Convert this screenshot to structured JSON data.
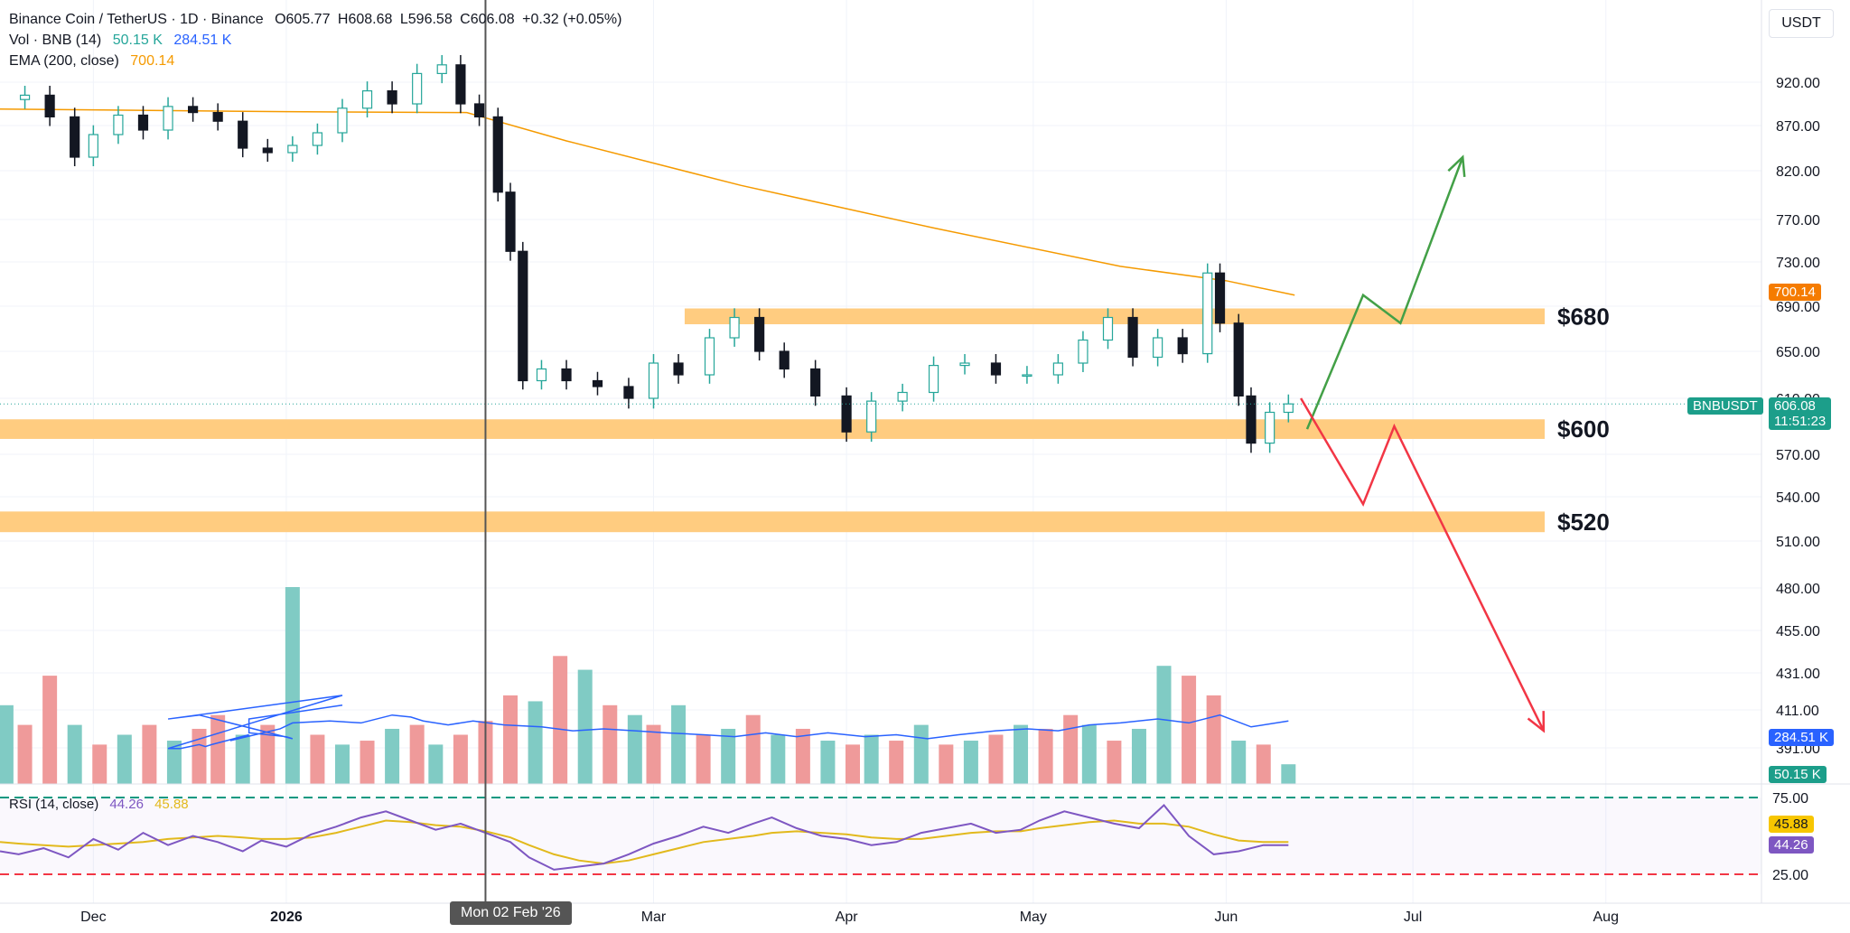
{
  "header": {
    "title": "Binance Coin / TetherUS · 1D · Binance",
    "ohlc": {
      "open": "O605.77",
      "high": "H608.68",
      "low": "L596.58",
      "close": "C606.08",
      "change": "+0.32 (+0.05%)"
    },
    "vol_label": "Vol · BNB (14)",
    "vol_value": "50.15 K",
    "vol_ma": "284.51 K",
    "ema_label": "EMA (200, close)",
    "ema_value": "700.14"
  },
  "unit": "USDT",
  "colors": {
    "up": "#26a69a",
    "down": "#131722",
    "ema": "#f59a00",
    "zone": "#ffcc80",
    "vol_up": "#80cbc4",
    "vol_down": "#ef9a9a",
    "vol_ma": "#2962ff",
    "rsi": "#7e57c2",
    "rsi_ma": "#e2b91c",
    "bull_arrow": "#43a047",
    "bear_arrow": "#f23645"
  },
  "chart_data": {
    "type": "candlestick",
    "symbol": "BNBUSDT",
    "y_ticks": [
      920,
      870,
      820,
      770,
      730,
      690,
      650,
      610,
      570,
      540,
      510,
      480,
      455,
      431,
      411,
      391
    ],
    "x_ticks": [
      "Dec",
      "2026",
      "Mar",
      "Apr",
      "May",
      "Jun",
      "Jul",
      "Aug"
    ],
    "x_ticks_dates": [
      "2025-12-01",
      "2026-01-01",
      "2026-03-01",
      "2026-04-01",
      "2026-05-01",
      "2026-06-01",
      "2026-07-01",
      "2026-08-01"
    ],
    "x_range": [
      "2025-11-16",
      "2026-08-26"
    ],
    "y_range": [
      380,
      960
    ],
    "crosshair": {
      "date": "2026-02-02",
      "label": "Mon 02 Feb '26"
    },
    "close_series": [
      [
        "2025-11-17",
        900
      ],
      [
        "2025-11-20",
        905
      ],
      [
        "2025-11-24",
        880
      ],
      [
        "2025-11-28",
        835
      ],
      [
        "2025-12-01",
        860
      ],
      [
        "2025-12-05",
        882
      ],
      [
        "2025-12-09",
        865
      ],
      [
        "2025-12-13",
        892
      ],
      [
        "2025-12-17",
        885
      ],
      [
        "2025-12-21",
        875
      ],
      [
        "2025-12-25",
        845
      ],
      [
        "2025-12-29",
        840
      ],
      [
        "2026-01-02",
        848
      ],
      [
        "2026-01-06",
        862
      ],
      [
        "2026-01-10",
        890
      ],
      [
        "2026-01-14",
        910
      ],
      [
        "2026-01-18",
        895
      ],
      [
        "2026-01-22",
        930
      ],
      [
        "2026-01-26",
        940
      ],
      [
        "2026-01-29",
        895
      ],
      [
        "2026-02-01",
        880
      ],
      [
        "2026-02-04",
        798
      ],
      [
        "2026-02-06",
        740
      ],
      [
        "2026-02-08",
        625
      ],
      [
        "2026-02-11",
        635
      ],
      [
        "2026-02-15",
        625
      ],
      [
        "2026-02-20",
        620
      ],
      [
        "2026-02-25",
        610
      ],
      [
        "2026-03-01",
        640
      ],
      [
        "2026-03-05",
        630
      ],
      [
        "2026-03-10",
        662
      ],
      [
        "2026-03-14",
        680
      ],
      [
        "2026-03-18",
        650
      ],
      [
        "2026-03-22",
        635
      ],
      [
        "2026-03-27",
        612
      ],
      [
        "2026-04-01",
        586
      ],
      [
        "2026-04-05",
        608
      ],
      [
        "2026-04-10",
        615
      ],
      [
        "2026-04-15",
        638
      ],
      [
        "2026-04-20",
        640
      ],
      [
        "2026-04-25",
        630
      ],
      [
        "2026-04-30",
        630
      ],
      [
        "2026-05-05",
        640
      ],
      [
        "2026-05-09",
        660
      ],
      [
        "2026-05-13",
        680
      ],
      [
        "2026-05-17",
        645
      ],
      [
        "2026-05-21",
        662
      ],
      [
        "2026-05-25",
        648
      ],
      [
        "2026-05-29",
        720
      ],
      [
        "2026-05-31",
        675
      ],
      [
        "2026-06-03",
        612
      ],
      [
        "2026-06-05",
        578
      ],
      [
        "2026-06-08",
        600
      ],
      [
        "2026-06-11",
        606
      ]
    ],
    "ema_series": [
      [
        "2025-11-16",
        889
      ],
      [
        "2026-01-01",
        886
      ],
      [
        "2026-01-30",
        885
      ],
      [
        "2026-02-15",
        853
      ],
      [
        "2026-03-15",
        805
      ],
      [
        "2026-04-15",
        762
      ],
      [
        "2026-05-15",
        726
      ],
      [
        "2026-06-01",
        713
      ],
      [
        "2026-06-12",
        700
      ]
    ],
    "ema_last": 700.14,
    "zones": [
      {
        "label": "$680",
        "low": 674,
        "high": 688,
        "from": "2026-03-06"
      },
      {
        "label": "$600",
        "low": 581,
        "high": 595,
        "from": "2025-11-16"
      },
      {
        "label": "$520",
        "low": 516,
        "high": 530,
        "from": "2025-11-16"
      }
    ],
    "price_tags": [
      {
        "name": "BNBUSDT",
        "value": "606.08",
        "time": "11:51:23"
      },
      {
        "name": "EMA",
        "value": "700.14"
      },
      {
        "name": "Vol MA",
        "value": "284.51 K"
      },
      {
        "name": "Vol",
        "value": "50.15 K"
      }
    ],
    "scenarios": {
      "bullish": [
        [
          "2026-06-14",
          588
        ],
        [
          "2026-06-23",
          700
        ],
        [
          "2026-06-29",
          675
        ],
        [
          "2026-07-09",
          835
        ]
      ],
      "bearish": [
        [
          "2026-06-13",
          610
        ],
        [
          "2026-06-23",
          535
        ],
        [
          "2026-06-28",
          590
        ],
        [
          "2026-07-22",
          400
        ]
      ]
    },
    "volume_series": [
      [
        0.4,
        1
      ],
      [
        0.3,
        0
      ],
      [
        0.55,
        0
      ],
      [
        0.3,
        1
      ],
      [
        0.2,
        0
      ],
      [
        0.25,
        1
      ],
      [
        0.3,
        0
      ],
      [
        0.22,
        1
      ],
      [
        0.28,
        0
      ],
      [
        0.35,
        0
      ],
      [
        0.25,
        1
      ],
      [
        0.3,
        0
      ],
      [
        1.0,
        1
      ],
      [
        0.25,
        0
      ],
      [
        0.2,
        1
      ],
      [
        0.22,
        0
      ],
      [
        0.28,
        1
      ],
      [
        0.3,
        0
      ],
      [
        0.2,
        1
      ],
      [
        0.25,
        0
      ],
      [
        0.32,
        0
      ],
      [
        0.45,
        0
      ],
      [
        0.42,
        1
      ],
      [
        0.65,
        0
      ],
      [
        0.58,
        1
      ],
      [
        0.4,
        0
      ],
      [
        0.35,
        1
      ],
      [
        0.3,
        0
      ],
      [
        0.4,
        1
      ],
      [
        0.25,
        0
      ],
      [
        0.28,
        1
      ],
      [
        0.35,
        0
      ],
      [
        0.25,
        1
      ],
      [
        0.28,
        0
      ],
      [
        0.22,
        1
      ],
      [
        0.2,
        0
      ],
      [
        0.25,
        1
      ],
      [
        0.22,
        0
      ],
      [
        0.3,
        1
      ],
      [
        0.2,
        0
      ],
      [
        0.22,
        1
      ],
      [
        0.25,
        0
      ],
      [
        0.3,
        1
      ],
      [
        0.28,
        0
      ],
      [
        0.35,
        0
      ],
      [
        0.3,
        1
      ],
      [
        0.22,
        0
      ],
      [
        0.28,
        1
      ],
      [
        0.6,
        1
      ],
      [
        0.55,
        0
      ],
      [
        0.45,
        0
      ],
      [
        0.22,
        1
      ],
      [
        0.2,
        0
      ],
      [
        0.1,
        1
      ]
    ],
    "volume_ma_series": [
      [
        0.42,
        0.4
      ],
      [
        0.3,
        0.33
      ],
      [
        0.3,
        0.26
      ],
      [
        0.35,
        0.24
      ],
      [
        0.36,
        0.23
      ],
      [
        0.24,
        0.35
      ],
      [
        0.2,
        0.33
      ],
      [
        0.42,
        0.45
      ],
      [
        0.2,
        0.18
      ],
      [
        0.22,
        0.18
      ],
      [
        0.24,
        0.2
      ],
      [
        0.25,
        0.19
      ],
      [
        0.26,
        0.2
      ],
      [
        0.3,
        0.25
      ],
      [
        0.28,
        0.22
      ],
      [
        0.34,
        0.28
      ],
      [
        0.36,
        0.31
      ],
      [
        0.4,
        0.32
      ],
      [
        0.44,
        0.31
      ],
      [
        0.48,
        0.35
      ],
      [
        0.5,
        0.34
      ],
      [
        0.52,
        0.32
      ],
      [
        0.55,
        0.3
      ],
      [
        0.58,
        0.32
      ],
      [
        0.62,
        0.3
      ],
      [
        0.66,
        0.29
      ],
      [
        0.7,
        0.27
      ],
      [
        0.74,
        0.28
      ],
      [
        0.78,
        0.27
      ],
      [
        0.82,
        0.26
      ],
      [
        0.86,
        0.25
      ],
      [
        0.9,
        0.24
      ],
      [
        0.94,
        0.26
      ],
      [
        0.98,
        0.24
      ],
      [
        1.02,
        0.26
      ],
      [
        1.06,
        0.24
      ],
      [
        1.1,
        0.25
      ],
      [
        1.14,
        0.23
      ],
      [
        1.18,
        0.25
      ],
      [
        1.22,
        0.27
      ],
      [
        1.26,
        0.28
      ],
      [
        1.3,
        0.27
      ],
      [
        1.34,
        0.3
      ],
      [
        1.38,
        0.31
      ],
      [
        1.42,
        0.33
      ],
      [
        1.46,
        0.31
      ],
      [
        1.5,
        0.35
      ],
      [
        1.54,
        0.29
      ],
      [
        1.58,
        0.32
      ]
    ],
    "rsi": {
      "label": "RSI (14, close)",
      "value": "44.26",
      "ma": "45.88",
      "levels": [
        "75.00",
        "25.00"
      ],
      "upper": 75,
      "lower": 25,
      "series": [
        40,
        38,
        42,
        36,
        48,
        41,
        52,
        44,
        50,
        46,
        40,
        47,
        43,
        51,
        56,
        62,
        66,
        60,
        54,
        58,
        52,
        46,
        36,
        28,
        30,
        32,
        38,
        45,
        50,
        56,
        52,
        58,
        62,
        55,
        50,
        48,
        44,
        46,
        52,
        55,
        58,
        52,
        54,
        60,
        66,
        62,
        58,
        55,
        70,
        50,
        38,
        40,
        44,
        44
      ],
      "ma_series": [
        46,
        45,
        44,
        43,
        44,
        45,
        46,
        48,
        49,
        50,
        49,
        48,
        48,
        49,
        52,
        56,
        60,
        59,
        57,
        56,
        53,
        49,
        44,
        38,
        34,
        32,
        34,
        38,
        42,
        46,
        48,
        50,
        52,
        53,
        52,
        51,
        49,
        48,
        48,
        50,
        52,
        53,
        53,
        55,
        57,
        59,
        60,
        58,
        58,
        56,
        51,
        47,
        46,
        46
      ]
    }
  }
}
